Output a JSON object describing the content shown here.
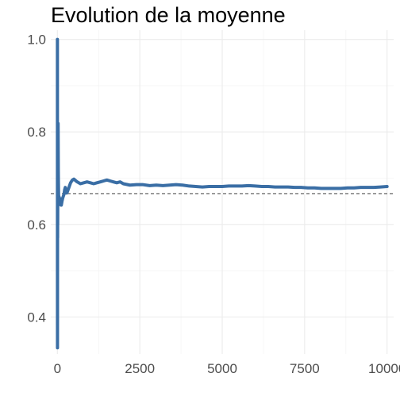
{
  "chart_data": {
    "type": "line",
    "title": "Evolution de la moyenne",
    "xlabel": "",
    "ylabel": "",
    "xlim": [
      0,
      10000
    ],
    "ylim": [
      0.32,
      1.02
    ],
    "x_ticks": [
      0,
      2500,
      5000,
      7500,
      10000
    ],
    "x_tick_labels": [
      "0",
      "2500",
      "5000",
      "7500",
      "10000"
    ],
    "y_ticks": [
      0.4,
      0.6,
      0.8,
      1.0
    ],
    "y_tick_labels": [
      "0.4",
      "0.6",
      "0.8",
      "1.0"
    ],
    "grid": true,
    "legend": "none",
    "reference_line": {
      "y": 0.6667,
      "style": "dashed",
      "color": "#555555"
    },
    "series": [
      {
        "color": "#3a6ea5",
        "points": [
          [
            1,
            1.0
          ],
          [
            2,
            0.5
          ],
          [
            3,
            0.3333
          ],
          [
            4,
            0.5
          ],
          [
            5,
            0.6
          ],
          [
            6,
            0.6667
          ],
          [
            7,
            0.5714
          ],
          [
            8,
            0.625
          ],
          [
            9,
            0.6667
          ],
          [
            10,
            0.6
          ],
          [
            12,
            0.6667
          ],
          [
            14,
            0.7143
          ],
          [
            16,
            0.75
          ],
          [
            18,
            0.7778
          ],
          [
            20,
            0.8
          ],
          [
            22,
            0.8182
          ],
          [
            25,
            0.76
          ],
          [
            28,
            0.7143
          ],
          [
            32,
            0.6875
          ],
          [
            36,
            0.6667
          ],
          [
            40,
            0.65
          ],
          [
            45,
            0.6444
          ],
          [
            50,
            0.66
          ],
          [
            60,
            0.65
          ],
          [
            70,
            0.6429
          ],
          [
            80,
            0.65
          ],
          [
            90,
            0.6556
          ],
          [
            100,
            0.65
          ],
          [
            120,
            0.6417
          ],
          [
            140,
            0.65
          ],
          [
            160,
            0.6563
          ],
          [
            180,
            0.6611
          ],
          [
            200,
            0.665
          ],
          [
            220,
            0.675
          ],
          [
            240,
            0.68
          ],
          [
            260,
            0.6731
          ],
          [
            280,
            0.6679
          ],
          [
            300,
            0.67
          ],
          [
            350,
            0.68
          ],
          [
            400,
            0.69
          ],
          [
            450,
            0.6956
          ],
          [
            500,
            0.698
          ],
          [
            600,
            0.692
          ],
          [
            700,
            0.688
          ],
          [
            800,
            0.69
          ],
          [
            900,
            0.692
          ],
          [
            1000,
            0.69
          ],
          [
            1100,
            0.688
          ],
          [
            1200,
            0.69
          ],
          [
            1300,
            0.692
          ],
          [
            1400,
            0.694
          ],
          [
            1500,
            0.696
          ],
          [
            1600,
            0.694
          ],
          [
            1700,
            0.692
          ],
          [
            1800,
            0.69
          ],
          [
            1900,
            0.692
          ],
          [
            2000,
            0.688
          ],
          [
            2200,
            0.685
          ],
          [
            2400,
            0.686
          ],
          [
            2600,
            0.686
          ],
          [
            2800,
            0.684
          ],
          [
            3000,
            0.685
          ],
          [
            3200,
            0.684
          ],
          [
            3400,
            0.685
          ],
          [
            3600,
            0.686
          ],
          [
            3800,
            0.685
          ],
          [
            4000,
            0.683
          ],
          [
            4200,
            0.682
          ],
          [
            4400,
            0.681
          ],
          [
            4600,
            0.682
          ],
          [
            4800,
            0.682
          ],
          [
            5000,
            0.682
          ],
          [
            5200,
            0.683
          ],
          [
            5400,
            0.683
          ],
          [
            5600,
            0.683
          ],
          [
            5800,
            0.684
          ],
          [
            6000,
            0.683
          ],
          [
            6200,
            0.682
          ],
          [
            6400,
            0.682
          ],
          [
            6600,
            0.681
          ],
          [
            6800,
            0.681
          ],
          [
            7000,
            0.681
          ],
          [
            7200,
            0.68
          ],
          [
            7400,
            0.68
          ],
          [
            7600,
            0.679
          ],
          [
            7800,
            0.679
          ],
          [
            8000,
            0.678
          ],
          [
            8200,
            0.678
          ],
          [
            8400,
            0.678
          ],
          [
            8600,
            0.678
          ],
          [
            8800,
            0.679
          ],
          [
            9000,
            0.679
          ],
          [
            9200,
            0.68
          ],
          [
            9400,
            0.68
          ],
          [
            9600,
            0.68
          ],
          [
            9800,
            0.681
          ],
          [
            10000,
            0.682
          ]
        ]
      }
    ]
  }
}
